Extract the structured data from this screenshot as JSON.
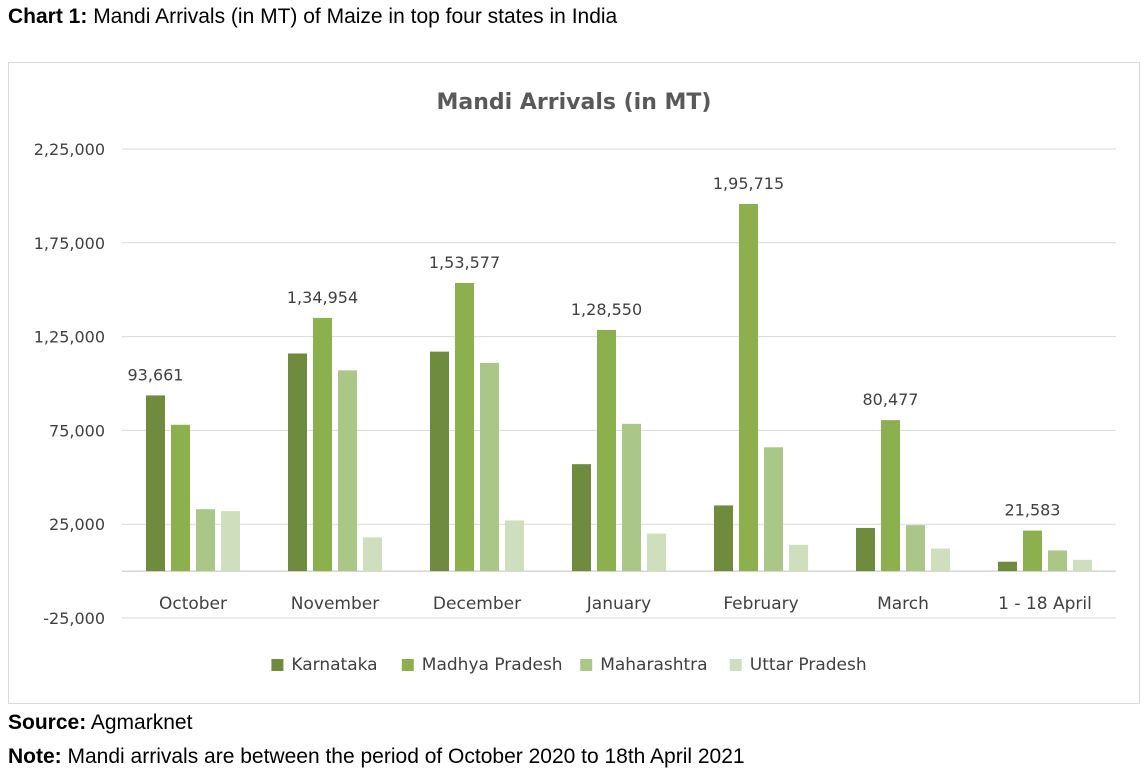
{
  "caption": {
    "prefix": "Chart 1:",
    "text": " Mandi Arrivals (in MT) of Maize in top four states in India"
  },
  "footer": {
    "source_prefix": "Source:",
    "source_text": " Agmarknet",
    "note_prefix": "Note:",
    "note_text": " Mandi arrivals are between the period of October 2020 to 18th April 2021"
  },
  "chart_data": {
    "type": "bar",
    "title": "Mandi Arrivals (in MT)",
    "xlabel": "",
    "ylabel": "",
    "ylim": [
      -25000,
      225000
    ],
    "yticks": [
      -25000,
      25000,
      75000,
      125000,
      175000,
      225000
    ],
    "ytick_labels": [
      "-25,000",
      "25,000",
      "75,000",
      "1,25,000",
      "1,75,000",
      "2,25,000"
    ],
    "grid": true,
    "legend_position": "bottom",
    "categories": [
      "October",
      "November",
      "December",
      "January",
      "February",
      "March",
      "1 - 18 April"
    ],
    "series": [
      {
        "name": "Karnataka",
        "color": "#6f8c3e",
        "values": [
          93661,
          116000,
          117000,
          57000,
          35000,
          23000,
          5000
        ]
      },
      {
        "name": "Madhya Pradesh",
        "color": "#8db04e",
        "values": [
          78000,
          134954,
          153577,
          128550,
          195715,
          80477,
          21583
        ]
      },
      {
        "name": "Maharashtra",
        "color": "#aac787",
        "values": [
          33000,
          107000,
          111000,
          78500,
          66000,
          24500,
          11000
        ]
      },
      {
        "name": "Uttar Pradesh",
        "color": "#cfdfbd",
        "values": [
          32000,
          18000,
          27000,
          20000,
          14000,
          12000,
          6000
        ]
      }
    ],
    "data_labels": [
      {
        "category": "October",
        "series": "Karnataka",
        "value": 93661,
        "text": "93,661"
      },
      {
        "category": "November",
        "series": "Madhya Pradesh",
        "value": 134954,
        "text": "1,34,954"
      },
      {
        "category": "December",
        "series": "Madhya Pradesh",
        "value": 153577,
        "text": "1,53,577"
      },
      {
        "category": "January",
        "series": "Madhya Pradesh",
        "value": 128550,
        "text": "1,28,550"
      },
      {
        "category": "February",
        "series": "Madhya Pradesh",
        "value": 195715,
        "text": "1,95,715"
      },
      {
        "category": "March",
        "series": "Madhya Pradesh",
        "value": 80477,
        "text": "80,477"
      },
      {
        "category": "1 - 18 April",
        "series": "Madhya Pradesh",
        "value": 21583,
        "text": "21,583"
      }
    ]
  }
}
